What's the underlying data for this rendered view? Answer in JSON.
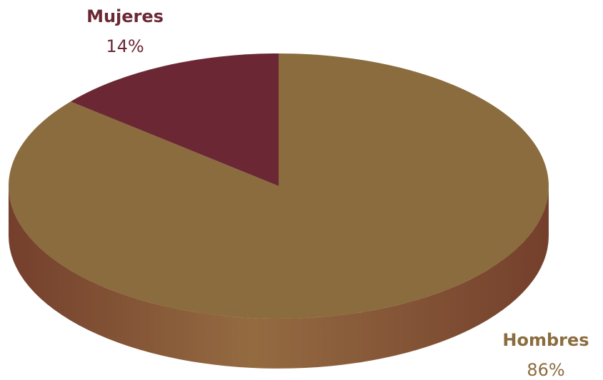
{
  "chart_data": {
    "type": "pie",
    "style": "3d",
    "slices": [
      {
        "label": "Mujeres",
        "value": 14,
        "value_label": "14%",
        "color": "#6b2834"
      },
      {
        "label": "Hombres",
        "value": 86,
        "value_label": "86%",
        "color": "#8b6c3e"
      }
    ],
    "title": ""
  },
  "colors": {
    "hombres_side_dark": "#743f2c",
    "hombres_side_light": "#946b41"
  }
}
